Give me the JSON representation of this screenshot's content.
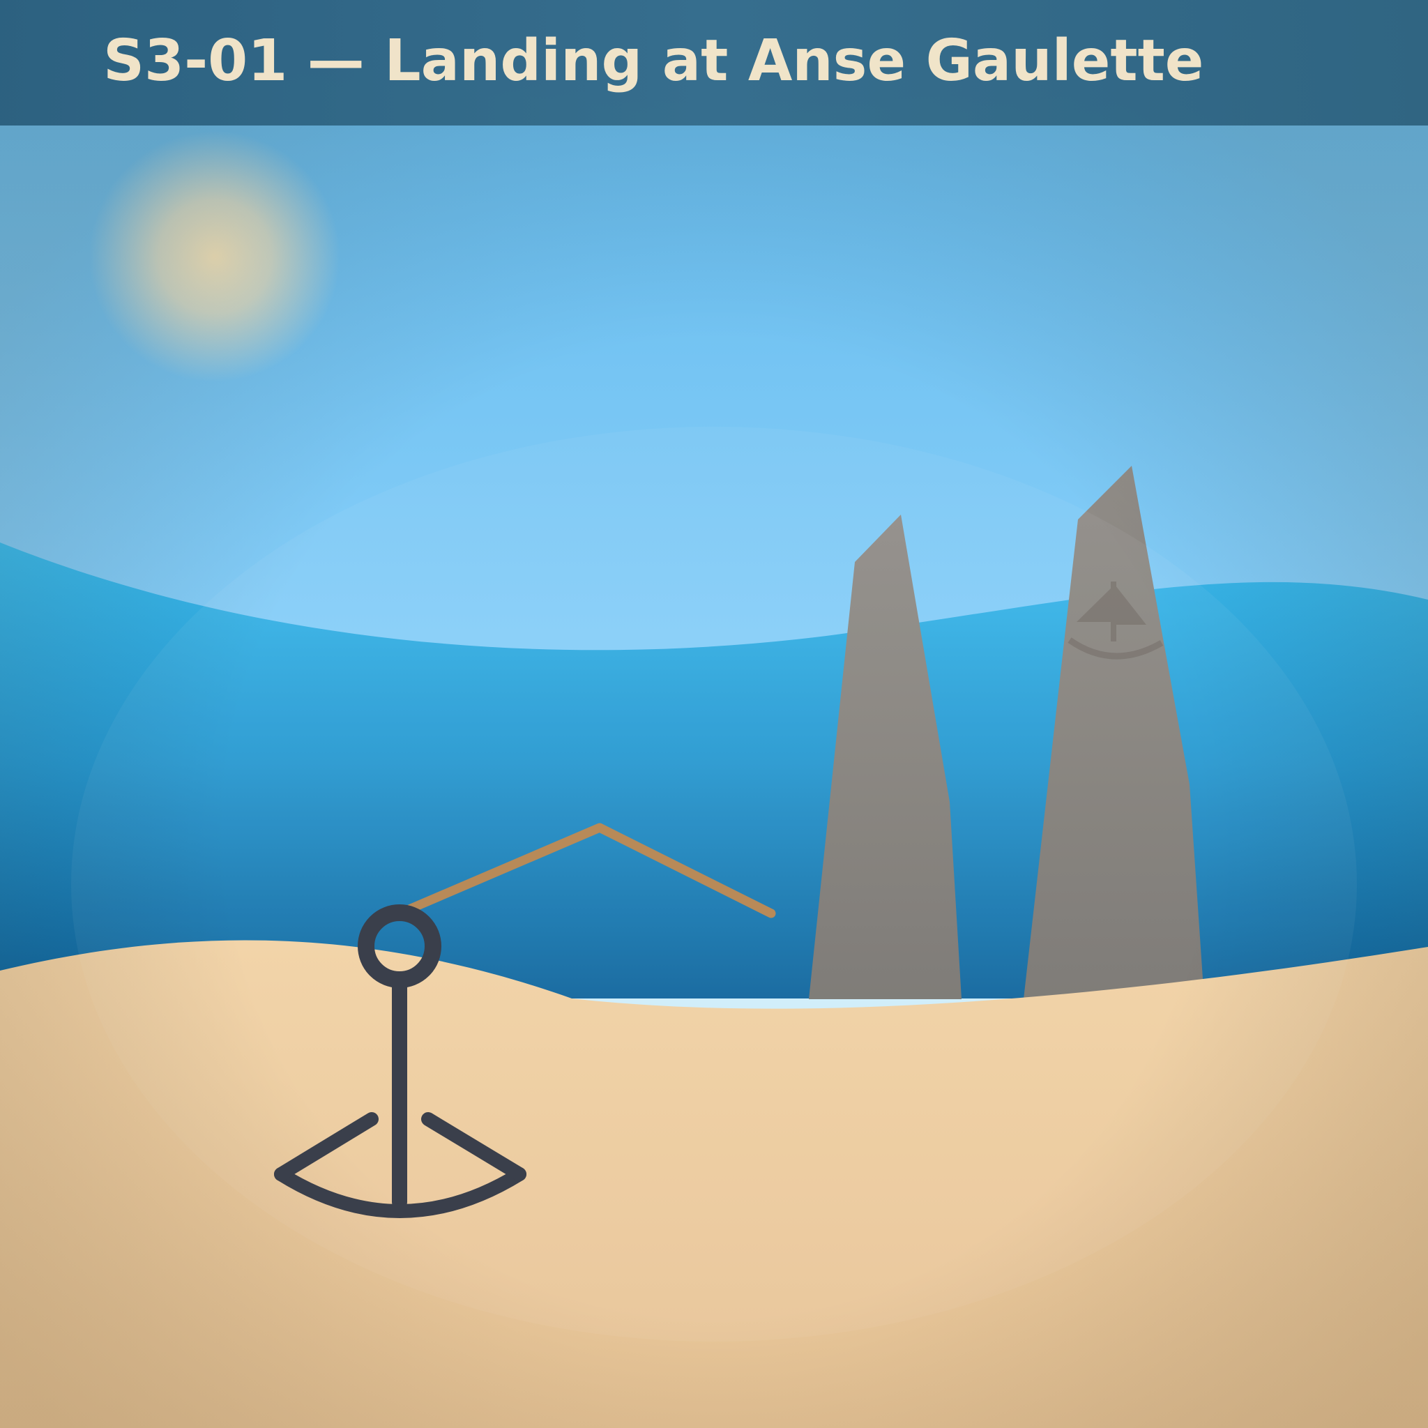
{
  "scene": {
    "title": "S3-01 — Landing at Anse Gaulette",
    "elements": [
      "sun",
      "sky",
      "sea",
      "rock-pillar-left",
      "rock-pillar-right",
      "distant-sailboat",
      "sand-beach",
      "anchor",
      "mooring-rope"
    ],
    "icons": {
      "anchor": "anchor-icon",
      "boat": "sailboat-icon"
    },
    "colors": {
      "header": "#2e6482",
      "title_text": "#f5e6c9",
      "sky_top": "#5fb8ec",
      "sky_bottom": "#a8dcf8",
      "sea_top": "#3bbcef",
      "sea_bottom": "#0c5e96",
      "sand": "#f2d2a5",
      "rock": "#7f7a72",
      "anchor": "#3a3f4b",
      "rope": "#b88a58",
      "sun": "#ece2c2"
    }
  }
}
